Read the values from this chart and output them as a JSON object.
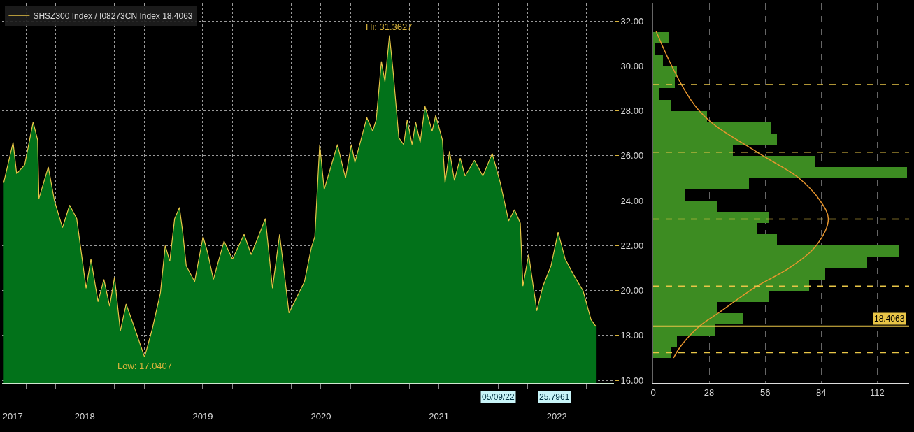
{
  "chart_data": [
    {
      "type": "area",
      "legend": "top left",
      "grid": true,
      "series": [
        {
          "type": "area",
          "color": "#02721a",
          "x": [
            "2017-10-23",
            "2017-11-21",
            "2017-12-02",
            "2017-12-27",
            "2018-01-22",
            "2018-02-05",
            "2018-02-09",
            "2018-03-10",
            "2018-03-29",
            "2018-04-23",
            "2018-05-15",
            "2018-06-06",
            "2018-07-05",
            "2018-07-20",
            "2018-08-11",
            "2018-08-29",
            "2018-09-16",
            "2018-10-01",
            "2018-10-19",
            "2018-11-06",
            "2018-11-28",
            "2019-01-02",
            "2019-01-26",
            "2019-02-20",
            "2019-03-07",
            "2019-03-21",
            "2019-04-05",
            "2019-04-20",
            "2019-04-30",
            "2019-05-11",
            "2019-06-06",
            "2019-07-02",
            "2019-07-16",
            "2019-08-03",
            "2019-09-05",
            "2019-10-01",
            "2019-11-06",
            "2019-11-28",
            "2020-01-11",
            "2020-02-02",
            "2020-02-24",
            "2020-03-06",
            "2020-03-24",
            "2020-05-11",
            "2020-06-01",
            "2020-06-12",
            "2020-06-27",
            "2020-07-11",
            "2020-08-21",
            "2020-09-15",
            "2020-10-03",
            "2020-10-14",
            "2020-11-20",
            "2020-12-08",
            "2020-12-19",
            "2021-01-04",
            "2021-01-15",
            "2021-01-29",
            "2021-02-09",
            "2021-02-27",
            "2021-03-14",
            "2021-03-25",
            "2021-04-09",
            "2021-04-20",
            "2021-05-04",
            "2021-05-19",
            "2021-06-10",
            "2021-06-21",
            "2021-07-12",
            "2021-07-20",
            "2021-08-03",
            "2021-08-18",
            "2021-09-05",
            "2021-09-20",
            "2021-10-19",
            "2021-11-14",
            "2021-12-13",
            "2022-01-07",
            "2022-02-02",
            "2022-02-20",
            "2022-03-10",
            "2022-03-18",
            "2022-04-05",
            "2022-04-30",
            "2022-05-19",
            "2022-06-13",
            "2022-07-05",
            "2022-07-27",
            "2022-08-22",
            "2022-09-20",
            "2022-10-15",
            "2022-10-30"
          ],
          "values": [
            24.8,
            26.6,
            25.2,
            25.6,
            27.5,
            26.7,
            24.1,
            25.5,
            24.0,
            22.8,
            23.8,
            23.2,
            20.1,
            21.4,
            19.5,
            20.5,
            19.3,
            20.6,
            18.2,
            19.4,
            18.5,
            17.0407,
            18.3,
            19.9,
            22.0,
            21.3,
            23.2,
            23.7,
            22.6,
            21.1,
            20.4,
            22.4,
            21.7,
            20.5,
            22.2,
            21.4,
            22.5,
            21.6,
            23.2,
            20.1,
            22.5,
            21.2,
            19.0,
            20.4,
            21.9,
            22.4,
            26.5,
            24.5,
            26.5,
            25.0,
            26.5,
            25.7,
            27.7,
            27.1,
            27.6,
            30.2,
            29.3,
            31.3627,
            29.8,
            26.8,
            26.5,
            27.6,
            26.5,
            27.5,
            26.6,
            28.2,
            27.1,
            27.8,
            26.7,
            24.8,
            26.2,
            24.9,
            25.9,
            25.1,
            25.8,
            25.1,
            26.1,
            24.8,
            23.1,
            23.6,
            23.0,
            20.2,
            21.6,
            19.1,
            20.2,
            21.1,
            22.6,
            21.4,
            20.7,
            20.0,
            18.7,
            18.4063
          ]
        },
        {
          "type": "line",
          "name": "SHSZ300 Index / I08273CN Index 18.4063",
          "color": "#e8c547",
          "x": [
            "2017-10-23",
            "2017-11-21",
            "2017-12-02",
            "2017-12-27",
            "2018-01-22",
            "2018-02-05",
            "2018-02-09",
            "2018-03-10",
            "2018-03-29",
            "2018-04-23",
            "2018-05-15",
            "2018-06-06",
            "2018-07-05",
            "2018-07-20",
            "2018-08-11",
            "2018-08-29",
            "2018-09-16",
            "2018-10-01",
            "2018-10-19",
            "2018-11-06",
            "2018-11-28",
            "2019-01-02",
            "2019-01-26",
            "2019-02-20",
            "2019-03-07",
            "2019-03-21",
            "2019-04-05",
            "2019-04-20",
            "2019-04-30",
            "2019-05-11",
            "2019-06-06",
            "2019-07-02",
            "2019-07-16",
            "2019-08-03",
            "2019-09-05",
            "2019-10-01",
            "2019-11-06",
            "2019-11-28",
            "2020-01-11",
            "2020-02-02",
            "2020-02-24",
            "2020-03-06",
            "2020-03-24",
            "2020-05-11",
            "2020-06-01",
            "2020-06-12",
            "2020-06-27",
            "2020-07-11",
            "2020-08-21",
            "2020-09-15",
            "2020-10-03",
            "2020-10-14",
            "2020-11-20",
            "2020-12-08",
            "2020-12-19",
            "2021-01-04",
            "2021-01-15",
            "2021-01-29",
            "2021-02-09",
            "2021-02-27",
            "2021-03-14",
            "2021-03-25",
            "2021-04-09",
            "2021-04-20",
            "2021-05-04",
            "2021-05-19",
            "2021-06-10",
            "2021-06-21",
            "2021-07-12",
            "2021-07-20",
            "2021-08-03",
            "2021-08-18",
            "2021-09-05",
            "2021-09-20",
            "2021-10-19",
            "2021-11-14",
            "2021-12-13",
            "2022-01-07",
            "2022-02-02",
            "2022-02-20",
            "2022-03-10",
            "2022-03-18",
            "2022-04-05",
            "2022-04-30",
            "2022-05-19",
            "2022-06-13",
            "2022-07-05",
            "2022-07-27",
            "2022-08-22",
            "2022-09-20",
            "2022-10-15",
            "2022-10-30"
          ],
          "values": [
            24.8,
            26.6,
            25.2,
            25.6,
            27.5,
            26.7,
            24.1,
            25.5,
            24.0,
            22.8,
            23.8,
            23.2,
            20.1,
            21.4,
            19.5,
            20.5,
            19.3,
            20.6,
            18.2,
            19.4,
            18.5,
            17.0407,
            18.3,
            19.9,
            22.0,
            21.3,
            23.2,
            23.7,
            22.6,
            21.1,
            20.4,
            22.4,
            21.7,
            20.5,
            22.2,
            21.4,
            22.5,
            21.6,
            23.2,
            20.1,
            22.5,
            21.2,
            19.0,
            20.4,
            21.9,
            22.4,
            26.5,
            24.5,
            26.5,
            25.0,
            26.5,
            25.7,
            27.7,
            27.1,
            27.6,
            30.2,
            29.3,
            31.3627,
            29.8,
            26.8,
            26.5,
            27.6,
            26.5,
            27.5,
            26.6,
            28.2,
            27.1,
            27.8,
            26.7,
            24.8,
            26.2,
            24.9,
            25.9,
            25.1,
            25.8,
            25.1,
            26.1,
            24.8,
            23.1,
            23.6,
            23.0,
            20.2,
            21.6,
            19.1,
            20.2,
            21.1,
            22.6,
            21.4,
            20.7,
            20.0,
            18.7,
            18.4063
          ]
        }
      ],
      "xlim": [
        "2017-10-18",
        "2022-12-25"
      ],
      "xticks": [
        {
          "value": "2017-11-20",
          "label": "2017"
        },
        {
          "value": "2018-01-01",
          "label": null
        },
        {
          "value": "2018-04-01",
          "label": null
        },
        {
          "value": "2018-07-01",
          "label": "2018"
        },
        {
          "value": "2018-10-01",
          "label": null
        },
        {
          "value": "2019-01-01",
          "label": null
        },
        {
          "value": "2019-04-01",
          "label": null
        },
        {
          "value": "2019-07-01",
          "label": "2019"
        },
        {
          "value": "2019-10-01",
          "label": null
        },
        {
          "value": "2020-01-01",
          "label": null
        },
        {
          "value": "2020-04-01",
          "label": null
        },
        {
          "value": "2020-07-01",
          "label": "2020"
        },
        {
          "value": "2020-10-01",
          "label": null
        },
        {
          "value": "2021-01-01",
          "label": null
        },
        {
          "value": "2021-04-01",
          "label": null
        },
        {
          "value": "2021-07-01",
          "label": "2021"
        },
        {
          "value": "2021-10-01",
          "label": null
        },
        {
          "value": "2022-01-01",
          "label": null
        },
        {
          "value": "2022-04-01",
          "label": null
        },
        {
          "value": "2022-07-01",
          "label": "2022"
        },
        {
          "value": "2022-10-01",
          "label": null
        }
      ],
      "ylim": [
        15.88,
        32.78
      ],
      "yticks": [
        {
          "value": 16,
          "label": "16.00"
        },
        {
          "value": 18,
          "label": "18.00"
        },
        {
          "value": 20,
          "label": "20.00"
        },
        {
          "value": 22,
          "label": "22.00"
        },
        {
          "value": 24,
          "label": "24.00"
        },
        {
          "value": 26,
          "label": "26.00"
        },
        {
          "value": 28,
          "label": "28.00"
        },
        {
          "value": 30,
          "label": "30.00"
        },
        {
          "value": 32,
          "label": "32.00"
        }
      ],
      "annotations": [
        {
          "text": "Hi: 31.3627",
          "x": "2021-01-29",
          "y": 31.3627
        },
        {
          "text": "Low: 17.0407",
          "x": "2019-01-02",
          "y": 17.0407
        },
        "25.7961",
        "05/09/22"
      ]
    },
    {
      "type": "histogram",
      "orientation": "horizontal",
      "color": "#3d8c22",
      "grid": "x",
      "tick_labels": "x",
      "bins": [
        17.0,
        17.5,
        18.0,
        18.5,
        19.0,
        19.5,
        20.0,
        20.5,
        21.0,
        21.5,
        22.0,
        22.5,
        23.0,
        23.5,
        24.0,
        24.5,
        25.0,
        25.5,
        26.0,
        26.5,
        27.0,
        27.5,
        28.0,
        28.5,
        29.0,
        29.5,
        30.0,
        30.5,
        31.0,
        31.5
      ],
      "values": [
        9,
        12,
        31,
        45,
        32,
        58,
        78,
        86,
        107,
        123,
        62,
        52,
        58,
        32,
        16,
        48,
        127,
        81,
        40,
        62,
        59,
        27,
        9,
        3,
        11,
        12,
        5,
        1,
        8
      ],
      "series": [
        {
          "type": "line",
          "color": "#e8962e",
          "x": [
            17.0,
            17.5,
            18.4,
            19.0,
            20.2,
            21.0,
            22.0,
            23.18,
            24.0,
            25.0,
            26.16,
            28.0,
            31.56
          ],
          "values": [
            10.2,
            13.6,
            23,
            32.6,
            52,
            68,
            81.5,
            87.6,
            83.5,
            73,
            52,
            23,
            1.4
          ]
        }
      ],
      "xlim": [
        0,
        128
      ],
      "xticks": [
        0,
        28,
        56,
        84,
        112
      ],
      "ylim": [
        15.88,
        32.78
      ],
      "ref_lines": [
        {
          "axis": "y",
          "value": 18.4063,
          "label": "18.4063",
          "color": "#e8c547",
          "line_style": "solid"
        },
        {
          "axis": "y",
          "value": 17.23,
          "color": "#e8c547",
          "line_style": "dashed"
        },
        {
          "axis": "y",
          "value": 20.2,
          "color": "#e8c547",
          "line_style": "dashed"
        },
        {
          "axis": "y",
          "value": 23.18,
          "color": "#e8c547",
          "line_style": "dashed"
        },
        {
          "axis": "y",
          "value": 26.16,
          "color": "#e8c547",
          "line_style": "dashed"
        },
        {
          "axis": "y",
          "value": 29.17,
          "color": "#e8c547",
          "line_style": "dashed"
        }
      ]
    }
  ]
}
